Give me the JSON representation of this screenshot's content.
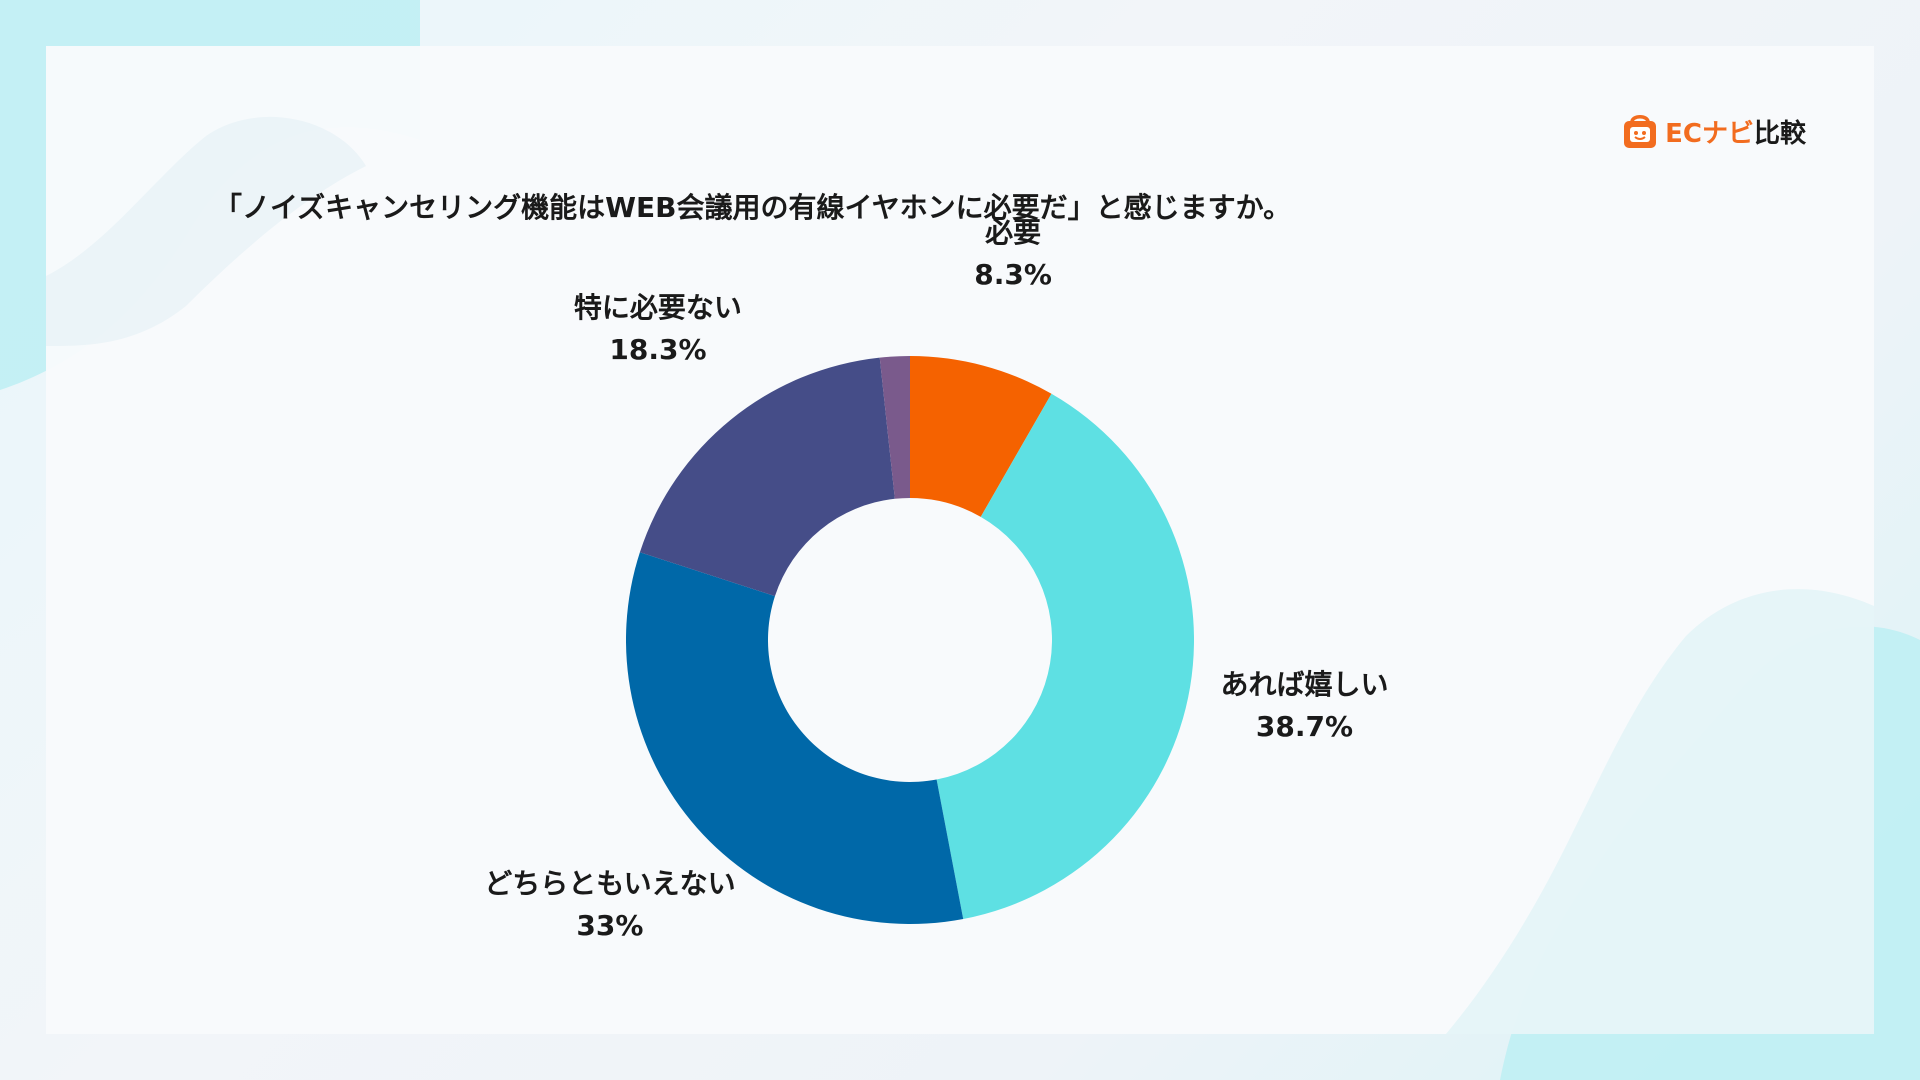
{
  "logo": {
    "brand": "ECナビ",
    "suffix": "比較"
  },
  "colors": {
    "accent": "#f26c1f",
    "text": "#1a1a1a"
  },
  "chart_data": {
    "type": "pie",
    "donut": true,
    "title": "「ノイズキャンセリング機能はWEB会議用の有線イヤホンに必要だ」と感じますか。",
    "slices": [
      {
        "label": "必要",
        "value": 8.3,
        "display": "8.3%",
        "color": "#f56200"
      },
      {
        "label": "あれば嬉しい",
        "value": 38.7,
        "display": "38.7%",
        "color": "#5ee0e3"
      },
      {
        "label": "どちらともいえない",
        "value": 33,
        "display": "33%",
        "color": "#0068a8"
      },
      {
        "label": "特に必要ない",
        "value": 18.3,
        "display": "18.3%",
        "color": "#454d88"
      },
      {
        "label": "",
        "value": 1.7,
        "display": "",
        "color": "#7a5a8c"
      }
    ]
  }
}
